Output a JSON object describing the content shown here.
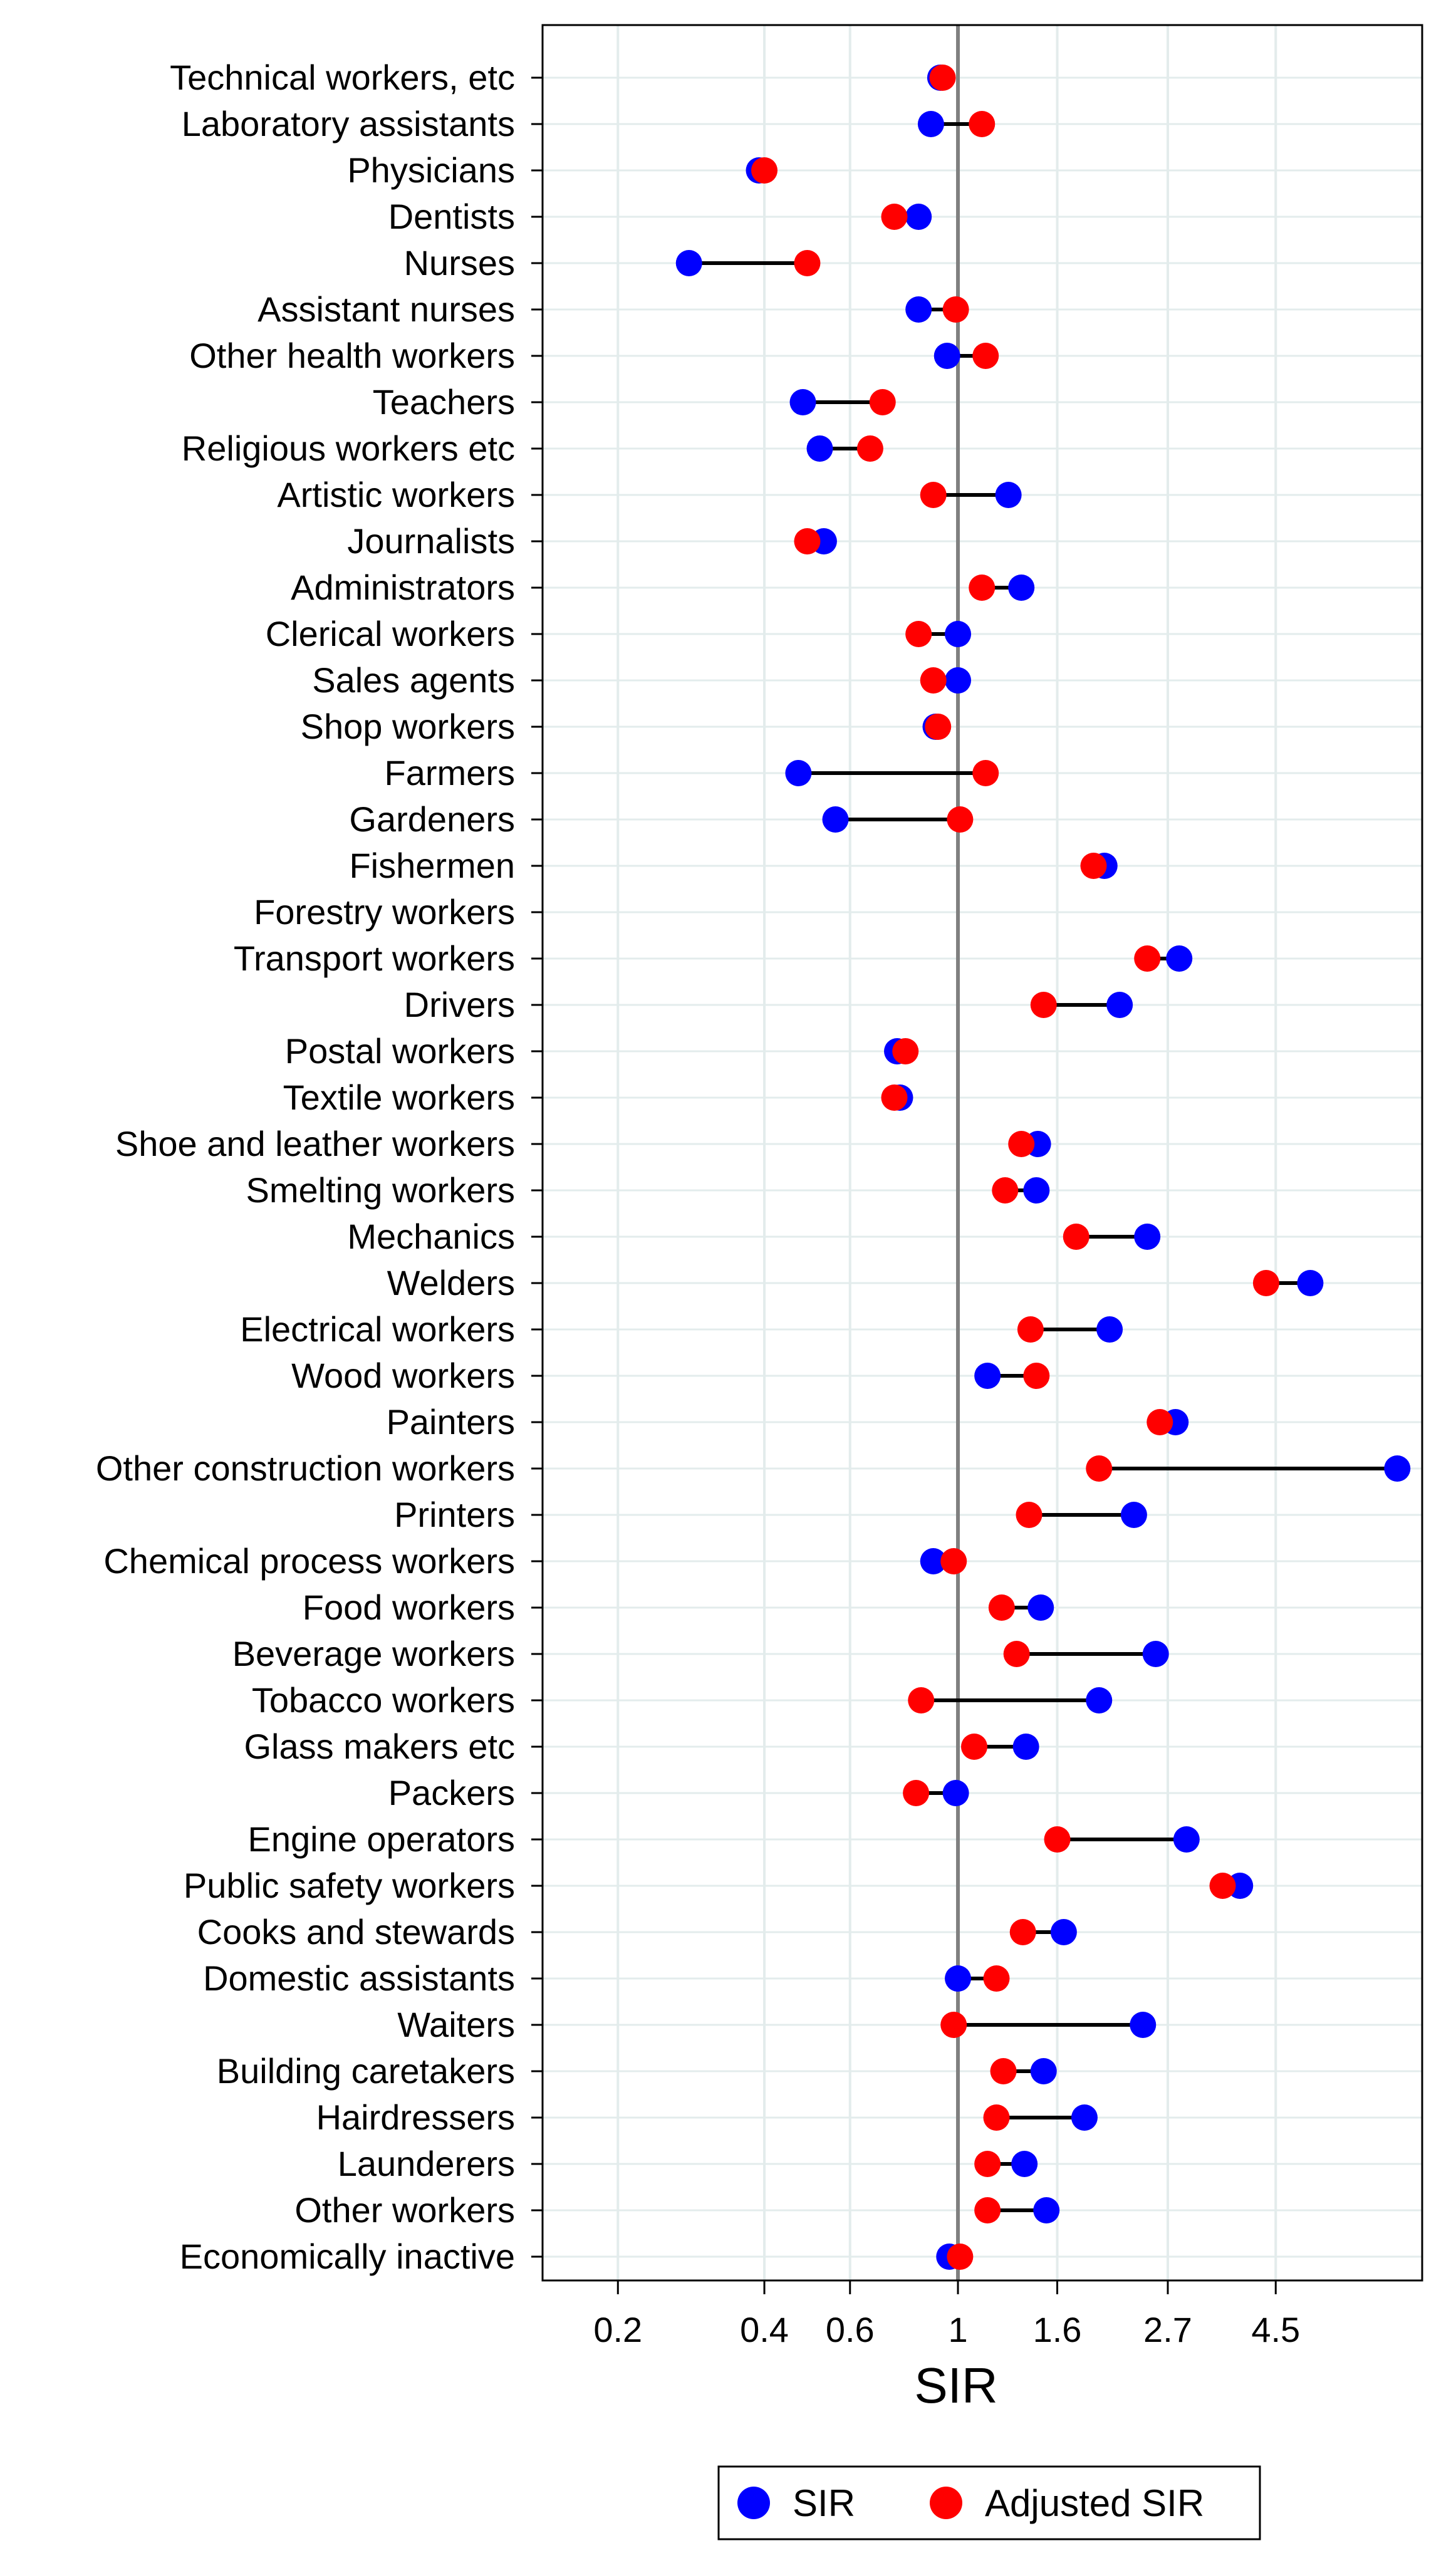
{
  "chart_data": {
    "type": "dumbbell",
    "title": "",
    "xlabel": "SIR",
    "ylabel": "",
    "x_scale": "log",
    "xlim": [
      0.14,
      9.0
    ],
    "reference_line": 1,
    "xticks": [
      0.2,
      0.4,
      0.6,
      1,
      1.6,
      2.7,
      4.5
    ],
    "xtick_labels": [
      "0.2",
      "0.4",
      "0.6",
      "1",
      "1.6",
      "2.7",
      "4.5"
    ],
    "grid": true,
    "legend_position": "bottom",
    "colors": {
      "SIR": "#0000ff",
      "Adjusted SIR": "#ff0000",
      "reference": "#808080"
    },
    "categories": [
      "Technical workers, etc",
      "Laboratory assistants",
      "Physicians",
      "Dentists",
      "Nurses",
      "Assistant nurses",
      "Other health workers",
      "Teachers",
      "Religious workers etc",
      "Artistic workers",
      "Journalists",
      "Administrators",
      "Clerical workers",
      "Sales agents",
      "Shop workers",
      "Farmers",
      "Gardeners",
      "Fishermen",
      "Forestry workers",
      "Transport workers",
      "Drivers",
      "Postal workers",
      "Textile workers",
      "Shoe and leather workers",
      "Smelting workers",
      "Mechanics",
      "Welders",
      "Electrical workers",
      "Wood workers",
      "Painters",
      "Other construction workers",
      "Printers",
      "Chemical process workers",
      "Food workers",
      "Beverage workers",
      "Tobacco workers",
      "Glass makers etc",
      "Packers",
      "Engine operators",
      "Public safety workers",
      "Cooks and stewards",
      "Domestic assistants",
      "Waiters",
      "Building caretakers",
      "Hairdressers",
      "Launderers",
      "Other workers",
      "Economically inactive"
    ],
    "series": [
      {
        "name": "SIR",
        "values": [
          0.92,
          0.88,
          0.39,
          0.83,
          0.28,
          0.83,
          0.95,
          0.48,
          0.52,
          1.27,
          0.53,
          1.35,
          1.0,
          1.0,
          0.9,
          0.47,
          0.56,
          2.0,
          null,
          2.85,
          2.15,
          0.75,
          0.76,
          1.46,
          1.45,
          2.45,
          5.3,
          2.05,
          1.15,
          2.8,
          8.0,
          2.3,
          0.89,
          1.48,
          2.55,
          1.95,
          1.38,
          0.99,
          2.95,
          3.8,
          1.65,
          1.0,
          2.4,
          1.5,
          1.82,
          1.37,
          1.52,
          0.96
        ]
      },
      {
        "name": "Adjusted SIR",
        "values": [
          0.93,
          1.12,
          0.4,
          0.74,
          0.49,
          0.99,
          1.14,
          0.7,
          0.66,
          0.89,
          0.49,
          1.12,
          0.83,
          0.89,
          0.91,
          1.14,
          1.01,
          1.9,
          null,
          2.45,
          1.5,
          0.78,
          0.74,
          1.35,
          1.25,
          1.75,
          4.3,
          1.41,
          1.45,
          2.6,
          1.95,
          1.4,
          0.98,
          1.23,
          1.32,
          0.84,
          1.08,
          0.82,
          1.6,
          3.5,
          1.36,
          1.2,
          0.98,
          1.24,
          1.2,
          1.15,
          1.15,
          1.01
        ]
      }
    ]
  }
}
